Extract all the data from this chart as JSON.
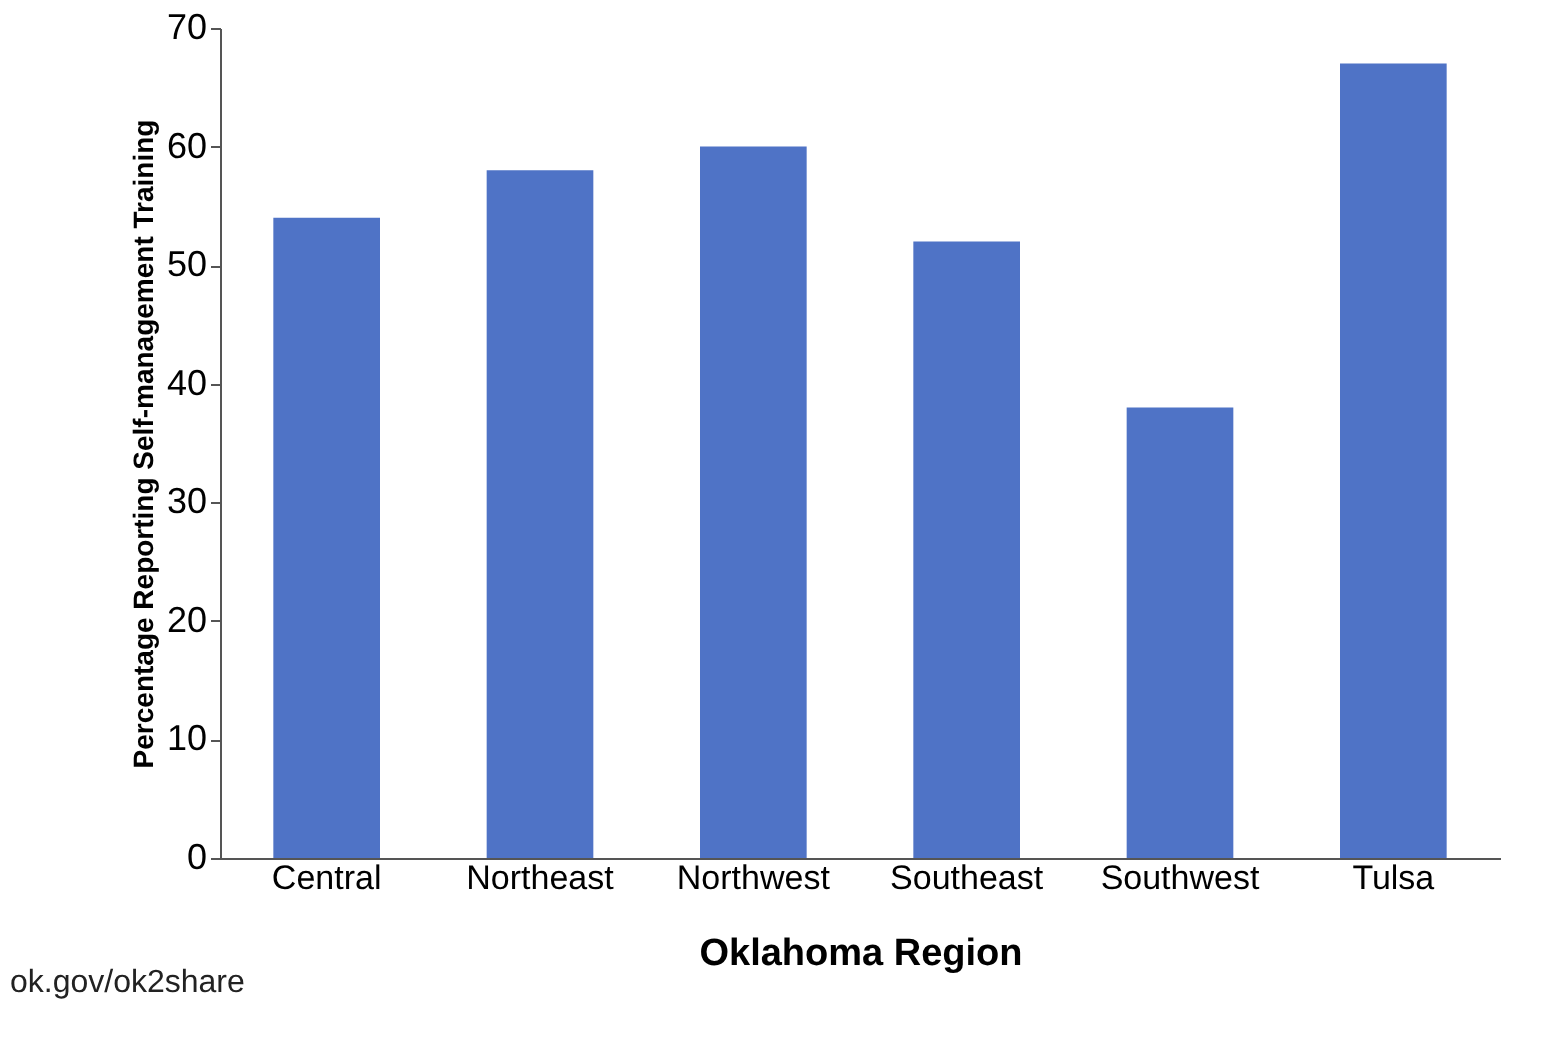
{
  "chart_data": {
    "type": "bar",
    "xlabel": "Oklahoma Region",
    "ylabel": "Percentage Reporting Self-management Training",
    "categories": [
      "Central",
      "Northeast",
      "Northwest",
      "Southeast",
      "Southwest",
      "Tulsa"
    ],
    "values": [
      54,
      58,
      60,
      52,
      38,
      67
    ],
    "color": "#4f73c6",
    "ylim": [
      0,
      70
    ],
    "yticks": [
      0,
      10,
      20,
      30,
      40,
      50,
      60,
      70
    ],
    "grid": false,
    "annotations": [
      "ok.gov/ok2share"
    ]
  }
}
